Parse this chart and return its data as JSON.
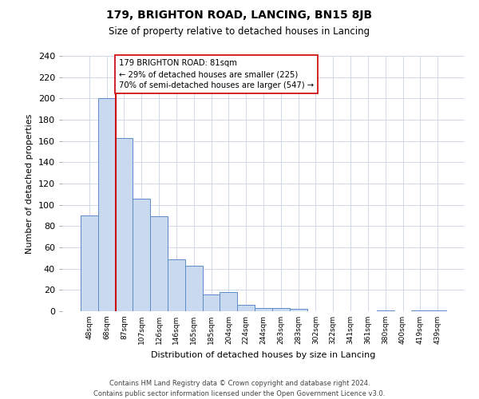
{
  "title": "179, BRIGHTON ROAD, LANCING, BN15 8JB",
  "subtitle": "Size of property relative to detached houses in Lancing",
  "xlabel": "Distribution of detached houses by size in Lancing",
  "ylabel": "Number of detached properties",
  "footer_line1": "Contains HM Land Registry data © Crown copyright and database right 2024.",
  "footer_line2": "Contains public sector information licensed under the Open Government Licence v3.0.",
  "bin_labels": [
    "48sqm",
    "68sqm",
    "87sqm",
    "107sqm",
    "126sqm",
    "146sqm",
    "165sqm",
    "185sqm",
    "204sqm",
    "224sqm",
    "244sqm",
    "263sqm",
    "283sqm",
    "302sqm",
    "322sqm",
    "341sqm",
    "361sqm",
    "380sqm",
    "400sqm",
    "419sqm",
    "439sqm"
  ],
  "bar_values": [
    90,
    200,
    163,
    106,
    89,
    49,
    43,
    16,
    18,
    6,
    3,
    3,
    2,
    0,
    0,
    0,
    0,
    1,
    0,
    1,
    1
  ],
  "bar_color": "#c9d9f0",
  "bar_edge_color": "#5b8cc8",
  "vline_x_idx": 2,
  "vline_color": "#cc0000",
  "annotation_line1": "179 BRIGHTON ROAD: 81sqm",
  "annotation_line2": "← 29% of detached houses are smaller (225)",
  "annotation_line3": "70% of semi-detached houses are larger (547) →",
  "annotation_box_edge": "#cc0000",
  "ylim": [
    0,
    240
  ],
  "yticks": [
    0,
    20,
    40,
    60,
    80,
    100,
    120,
    140,
    160,
    180,
    200,
    220,
    240
  ],
  "background_color": "#ffffff",
  "grid_color": "#d0d8e8"
}
